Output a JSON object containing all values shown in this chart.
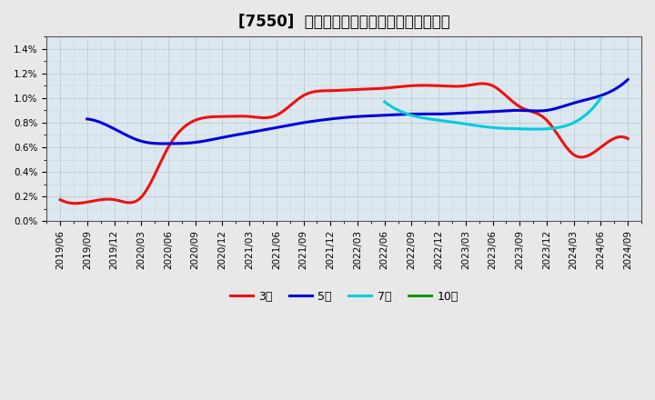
{
  "title": "[7550]  経常利益マージンの標準偏差の推移",
  "title_center": true,
  "background_color": "#e8e8e8",
  "plot_bg_color": "#dce8f0",
  "grid_color": "#888888",
  "ylim": [
    0.0,
    0.015
  ],
  "yticks": [
    0.0,
    0.002,
    0.004,
    0.006,
    0.008,
    0.01,
    0.012,
    0.014
  ],
  "ytick_labels": [
    "0.0%",
    "0.2%",
    "0.4%",
    "0.6%",
    "0.8%",
    "1.0%",
    "1.2%",
    "1.4%"
  ],
  "xticks": [
    "2019/06",
    "2019/09",
    "2019/12",
    "2020/03",
    "2020/06",
    "2020/09",
    "2020/12",
    "2021/03",
    "2021/06",
    "2021/09",
    "2021/12",
    "2022/03",
    "2022/06",
    "2022/09",
    "2022/12",
    "2023/03",
    "2023/06",
    "2023/09",
    "2023/12",
    "2024/03",
    "2024/06",
    "2024/09"
  ],
  "series": [
    {
      "label": "3年",
      "color": "#ee1111",
      "linewidth": 2.2,
      "y": [
        0.00175,
        0.00155,
        0.00175,
        0.00195,
        0.006,
        0.0082,
        0.0085,
        0.0085,
        0.0086,
        0.0102,
        0.0106,
        0.0107,
        0.0108,
        0.011,
        0.011,
        0.011,
        0.011,
        0.0093,
        0.0082,
        0.0054,
        0.006,
        0.0067
      ]
    },
    {
      "label": "5年",
      "color": "#0000dd",
      "linewidth": 2.2,
      "y": [
        null,
        0.0083,
        0.0075,
        0.0065,
        0.0063,
        0.0064,
        0.0068,
        0.0072,
        0.0076,
        0.008,
        0.0083,
        0.0085,
        0.0086,
        0.0087,
        0.0087,
        0.0088,
        0.0089,
        0.009,
        0.009,
        0.0096,
        0.0102,
        0.0115
      ]
    },
    {
      "label": "7年",
      "color": "#00ccdd",
      "linewidth": 2.2,
      "y": [
        null,
        null,
        null,
        null,
        null,
        null,
        null,
        null,
        null,
        null,
        null,
        null,
        0.0097,
        0.0086,
        0.0082,
        0.0079,
        0.0076,
        0.0075,
        0.0075,
        0.008,
        0.01,
        null
      ]
    },
    {
      "label": "10年",
      "color": "#009900",
      "linewidth": 2.2,
      "y": [
        null,
        null,
        null,
        null,
        null,
        null,
        null,
        null,
        null,
        null,
        null,
        null,
        null,
        null,
        null,
        null,
        null,
        null,
        null,
        null,
        null,
        null
      ]
    }
  ],
  "legend_ncol": 4,
  "title_fontsize": 12,
  "tick_fontsize": 7.5,
  "legend_fontsize": 9
}
